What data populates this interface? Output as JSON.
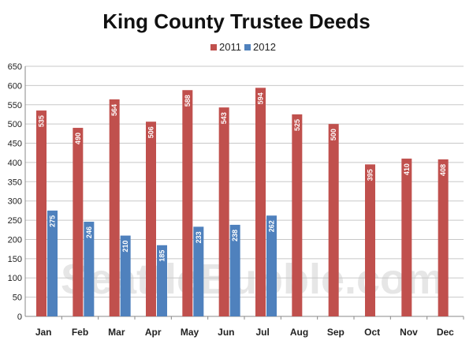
{
  "chart_data": {
    "type": "bar",
    "title": "King County Trustee Deeds",
    "watermark": "SeattleBubble.com",
    "categories": [
      "Jan",
      "Feb",
      "Mar",
      "Apr",
      "May",
      "Jun",
      "Jul",
      "Aug",
      "Sep",
      "Oct",
      "Nov",
      "Dec"
    ],
    "series": [
      {
        "name": "2011",
        "color": "#c0504d",
        "values": [
          535,
          490,
          564,
          506,
          588,
          543,
          594,
          525,
          500,
          395,
          410,
          408
        ]
      },
      {
        "name": "2012",
        "color": "#4f81bd",
        "values": [
          275,
          246,
          210,
          185,
          233,
          238,
          262,
          null,
          null,
          null,
          null,
          null
        ]
      }
    ],
    "ylim": [
      0,
      650
    ],
    "yticks": [
      0,
      50,
      100,
      150,
      200,
      250,
      300,
      350,
      400,
      450,
      500,
      550,
      600,
      650
    ],
    "grid": true,
    "legend": "top-center"
  }
}
